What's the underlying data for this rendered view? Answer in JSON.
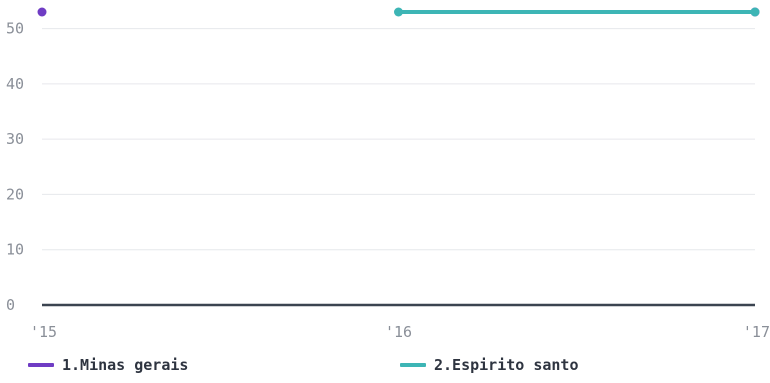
{
  "chart_data": {
    "type": "line",
    "x_ticks": [
      "'15",
      "'16",
      "'17"
    ],
    "x": [
      2015,
      2016,
      2017
    ],
    "ylim": [
      0,
      53
    ],
    "y_ticks": [
      0,
      10,
      20,
      30,
      40,
      50
    ],
    "grid": true,
    "legend_position": "bottom",
    "series": [
      {
        "name": "1.Minas gerais",
        "color": "#6f3cc4",
        "points": [
          {
            "x": 2015,
            "y": 53
          },
          {
            "x": 2017,
            "y": 53
          }
        ],
        "show_line": false
      },
      {
        "name": "2.Espirito santo",
        "color": "#3db5b5",
        "points": [
          {
            "x": 2016,
            "y": 53
          },
          {
            "x": 2017,
            "y": 53
          }
        ],
        "show_line": true
      }
    ]
  }
}
